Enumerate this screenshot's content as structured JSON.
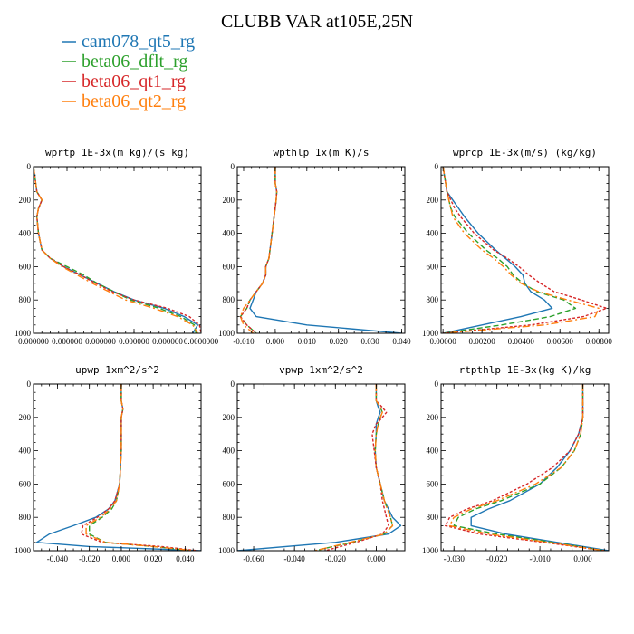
{
  "title": "CLUBB VAR at105E,25N",
  "colors": {
    "cam078_qt5_rg": "#1f77b4",
    "beta06_dflt_rg": "#2ca02c",
    "beta06_qt1_rg": "#d62728",
    "beta06_qt2_rg": "#ff7f0e"
  },
  "legend": [
    {
      "name": "cam078_qt5_rg",
      "color": "#1f77b4"
    },
    {
      "name": "beta06_dflt_rg",
      "color": "#2ca02c"
    },
    {
      "name": "beta06_qt1_rg",
      "color": "#d62728"
    },
    {
      "name": "beta06_qt2_rg",
      "color": "#ff7f0e"
    }
  ],
  "chart_data": [
    {
      "type": "line",
      "title": "wprtp  1E-3x(m kg)/(s kg)",
      "xlim": [
        0,
        1
      ],
      "ylim": [
        1000,
        0
      ],
      "xticks": [
        0,
        0.2,
        0.4,
        0.6,
        0.8,
        1
      ],
      "xtick_labels": [
        "0.000000",
        "0.000000",
        "0.000000",
        "0.000000",
        "0.000000",
        "0.0000000"
      ],
      "yticks": [
        0,
        200,
        400,
        600,
        800,
        1000
      ],
      "y": [
        0,
        150,
        200,
        250,
        300,
        400,
        500,
        550,
        600,
        650,
        700,
        750,
        800,
        850,
        900,
        950,
        1000
      ],
      "series": [
        {
          "name": "cam078_qt5_rg",
          "x": [
            0,
            0.02,
            0.05,
            0.03,
            0.02,
            0.03,
            0.05,
            0.1,
            0.18,
            0.28,
            0.38,
            0.48,
            0.6,
            0.78,
            0.9,
            0.98,
            0.95
          ]
        },
        {
          "name": "beta06_dflt_rg",
          "x": [
            0,
            0.02,
            0.05,
            0.03,
            0.02,
            0.03,
            0.05,
            0.1,
            0.2,
            0.3,
            0.38,
            0.48,
            0.58,
            0.75,
            0.88,
            0.96,
            0.97
          ]
        },
        {
          "name": "beta06_qt1_rg",
          "x": [
            0,
            0.02,
            0.05,
            0.03,
            0.02,
            0.03,
            0.05,
            0.1,
            0.18,
            0.28,
            0.37,
            0.47,
            0.6,
            0.8,
            0.93,
            0.99,
            1.0
          ]
        },
        {
          "name": "beta06_qt2_rg",
          "x": [
            0,
            0.02,
            0.05,
            0.03,
            0.02,
            0.03,
            0.05,
            0.1,
            0.17,
            0.26,
            0.35,
            0.45,
            0.55,
            0.72,
            0.86,
            0.95,
            0.98
          ]
        }
      ]
    },
    {
      "type": "line",
      "title": "wpthlp  1x(m K)/s",
      "xlim": [
        -0.012,
        0.041
      ],
      "ylim": [
        1000,
        0
      ],
      "xticks": [
        -0.01,
        0,
        0.01,
        0.02,
        0.03,
        0.04
      ],
      "xtick_labels": [
        "-0.010",
        "0.000",
        "0.010",
        "0.020",
        "0.030",
        "0.040"
      ],
      "yticks": [
        0,
        200,
        400,
        600,
        800,
        1000
      ],
      "y": [
        0,
        100,
        150,
        200,
        400,
        550,
        600,
        650,
        700,
        750,
        800,
        850,
        900,
        950,
        1000
      ],
      "series": [
        {
          "name": "cam078_qt5_rg",
          "x": [
            0,
            0,
            0.0005,
            0.0003,
            -0.001,
            -0.002,
            -0.003,
            -0.003,
            -0.004,
            -0.006,
            -0.007,
            -0.008,
            -0.006,
            0.01,
            0.04
          ]
        },
        {
          "name": "beta06_dflt_rg",
          "x": [
            0,
            0,
            0.0005,
            0.0003,
            -0.001,
            -0.002,
            -0.003,
            -0.003,
            -0.004,
            -0.006,
            -0.008,
            -0.009,
            -0.011,
            -0.009,
            -0.006
          ]
        },
        {
          "name": "beta06_qt1_rg",
          "x": [
            0,
            0,
            0.0005,
            0.0003,
            -0.001,
            -0.002,
            -0.003,
            -0.003,
            -0.004,
            -0.006,
            -0.008,
            -0.009,
            -0.011,
            -0.009,
            -0.006
          ]
        },
        {
          "name": "beta06_qt2_rg",
          "x": [
            0,
            0,
            0.0005,
            0.0003,
            -0.001,
            -0.002,
            -0.003,
            -0.003,
            -0.004,
            -0.006,
            -0.008,
            -0.01,
            -0.011,
            -0.01,
            -0.007
          ]
        }
      ]
    },
    {
      "type": "line",
      "title": "wprcp  1E-3x(m/s) (kg/kg)",
      "xlim": [
        -0.0001,
        0.0085
      ],
      "ylim": [
        1000,
        0
      ],
      "xticks": [
        0,
        0.002,
        0.004,
        0.006,
        0.008
      ],
      "xtick_labels": [
        "0.00000",
        "0.00200",
        "0.00400",
        "0.00600",
        "0.00800"
      ],
      "yticks": [
        0,
        200,
        400,
        600,
        800,
        1000
      ],
      "y": [
        0,
        150,
        200,
        250,
        300,
        400,
        500,
        550,
        600,
        650,
        700,
        750,
        800,
        850,
        900,
        950,
        1000
      ],
      "series": [
        {
          "name": "cam078_qt5_rg",
          "x": [
            0,
            0.0002,
            0.0005,
            0.0008,
            0.0011,
            0.0018,
            0.0027,
            0.0032,
            0.0037,
            0.0041,
            0.0042,
            0.0045,
            0.0052,
            0.0056,
            0.004,
            0.002,
            0
          ]
        },
        {
          "name": "beta06_dflt_rg",
          "x": [
            0,
            0.0002,
            0.0003,
            0.0004,
            0.0006,
            0.0013,
            0.0022,
            0.0028,
            0.0033,
            0.0036,
            0.0041,
            0.0048,
            0.0062,
            0.0068,
            0.0055,
            0.003,
            0
          ]
        },
        {
          "name": "beta06_qt1_rg",
          "x": [
            0,
            0.0002,
            0.0004,
            0.0006,
            0.0009,
            0.0016,
            0.0026,
            0.0033,
            0.0039,
            0.0044,
            0.005,
            0.0057,
            0.0071,
            0.0084,
            0.0072,
            0.0045,
            0
          ]
        },
        {
          "name": "beta06_qt2_rg",
          "x": [
            0,
            0.0002,
            0.0003,
            0.0004,
            0.0005,
            0.0011,
            0.002,
            0.0026,
            0.0031,
            0.0035,
            0.004,
            0.0049,
            0.0064,
            0.008,
            0.0078,
            0.0052,
            0
          ]
        }
      ]
    },
    {
      "type": "line",
      "title": "upwp  1xm^2/s^2",
      "xlim": [
        -0.055,
        0.05
      ],
      "ylim": [
        1000,
        0
      ],
      "xticks": [
        -0.04,
        -0.02,
        0,
        0.02,
        0.04
      ],
      "xtick_labels": [
        "-0.040",
        "-0.020",
        "0.000",
        "0.020",
        "0.040"
      ],
      "yticks": [
        0,
        200,
        400,
        600,
        800,
        1000
      ],
      "y": [
        0,
        100,
        150,
        200,
        400,
        600,
        700,
        750,
        800,
        850,
        900,
        950,
        975,
        1000
      ],
      "series": [
        {
          "name": "cam078_qt5_rg",
          "x": [
            0,
            0,
            0.001,
            0,
            0,
            -0.001,
            -0.004,
            -0.008,
            -0.016,
            -0.03,
            -0.045,
            -0.053,
            -0.02,
            0.05
          ]
        },
        {
          "name": "beta06_dflt_rg",
          "x": [
            0,
            0,
            0.001,
            0,
            0,
            -0.001,
            -0.003,
            -0.006,
            -0.012,
            -0.02,
            -0.02,
            -0.01,
            0.02,
            0.045
          ]
        },
        {
          "name": "beta06_qt1_rg",
          "x": [
            0,
            0,
            0.001,
            0,
            0,
            -0.001,
            -0.004,
            -0.008,
            -0.015,
            -0.024,
            -0.025,
            -0.012,
            0.025,
            0.048
          ]
        },
        {
          "name": "beta06_qt2_rg",
          "x": [
            0,
            0,
            0.001,
            0,
            0,
            -0.001,
            -0.003,
            -0.007,
            -0.013,
            -0.022,
            -0.022,
            -0.01,
            0.02,
            0.046
          ]
        }
      ]
    },
    {
      "type": "line",
      "title": "vpwp  1xm^2/s^2",
      "xlim": [
        -0.068,
        0.014
      ],
      "ylim": [
        1000,
        0
      ],
      "xticks": [
        -0.06,
        -0.04,
        -0.02,
        0
      ],
      "xtick_labels": [
        "-0.060",
        "-0.040",
        "-0.020",
        "0.000"
      ],
      "yticks": [
        0,
        200,
        400,
        600,
        800,
        1000
      ],
      "y": [
        0,
        100,
        140,
        170,
        200,
        240,
        300,
        400,
        500,
        600,
        700,
        800,
        850,
        900,
        950,
        1000
      ],
      "series": [
        {
          "name": "cam078_qt5_rg",
          "x": [
            0,
            0,
            0.001,
            0.002,
            0.001,
            0,
            0,
            -0.0005,
            0,
            0.002,
            0.004,
            0.008,
            0.012,
            0.006,
            -0.02,
            -0.068
          ]
        },
        {
          "name": "beta06_dflt_rg",
          "x": [
            0,
            0,
            0.002,
            0.003,
            0.002,
            0.001,
            0,
            -0.0005,
            0,
            0.002,
            0.004,
            0.007,
            0.008,
            0.004,
            -0.012,
            -0.03
          ]
        },
        {
          "name": "beta06_qt1_rg",
          "x": [
            0,
            0,
            0.003,
            0.005,
            0.003,
            0,
            -0.002,
            -0.001,
            0,
            0.002,
            0.003,
            0.005,
            0.006,
            0.003,
            -0.01,
            -0.025
          ]
        },
        {
          "name": "beta06_qt2_rg",
          "x": [
            0,
            0,
            0.002,
            0.003,
            0.002,
            0.001,
            0,
            -0.0005,
            0,
            0.002,
            0.004,
            0.007,
            0.008,
            0.004,
            -0.013,
            -0.03
          ]
        }
      ]
    },
    {
      "type": "line",
      "title": "rtpthlp  1E-3x(kg K)/kg",
      "xlim": [
        -0.033,
        0.006
      ],
      "ylim": [
        1000,
        0
      ],
      "xticks": [
        -0.03,
        -0.02,
        -0.01,
        0
      ],
      "xtick_labels": [
        "-0.030",
        "-0.020",
        "-0.010",
        "0.000"
      ],
      "yticks": [
        0,
        200,
        400,
        600,
        800,
        1000
      ],
      "y": [
        0,
        200,
        300,
        400,
        500,
        600,
        700,
        750,
        800,
        850,
        900,
        950,
        1000
      ],
      "series": [
        {
          "name": "cam078_qt5_rg",
          "x": [
            0,
            0,
            -0.001,
            -0.003,
            -0.006,
            -0.01,
            -0.017,
            -0.022,
            -0.026,
            -0.026,
            -0.018,
            -0.006,
            0.006
          ]
        },
        {
          "name": "beta06_dflt_rg",
          "x": [
            0,
            0,
            -0.0005,
            -0.002,
            -0.005,
            -0.01,
            -0.019,
            -0.025,
            -0.029,
            -0.03,
            -0.02,
            -0.007,
            0.005
          ]
        },
        {
          "name": "beta06_qt1_rg",
          "x": [
            0,
            0,
            -0.001,
            -0.003,
            -0.007,
            -0.013,
            -0.021,
            -0.027,
            -0.031,
            -0.032,
            -0.024,
            -0.009,
            0.005
          ]
        },
        {
          "name": "beta06_qt2_rg",
          "x": [
            0,
            0,
            -0.0005,
            -0.002,
            -0.005,
            -0.011,
            -0.02,
            -0.026,
            -0.03,
            -0.031,
            -0.022,
            -0.008,
            0.005
          ]
        }
      ]
    }
  ]
}
